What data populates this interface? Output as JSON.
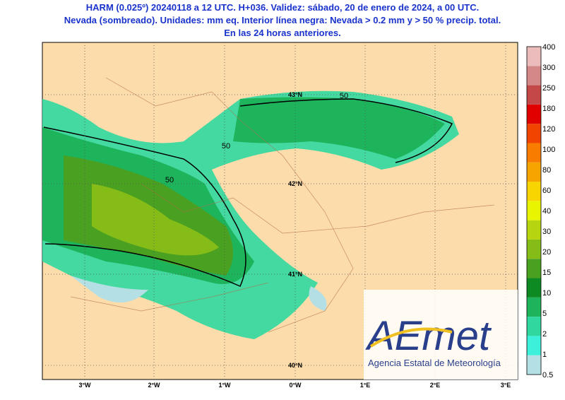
{
  "header": {
    "lines": [
      "HARM (0.025º) 20240118 a 12 UTC. H+036. Validez: sábado, 20 de enero de 2024, a 00 UTC.",
      "Nevada (sombreado). Unidades: mm eq. Interior línea negra: Nevada > 0.2 mm y > 50 % precip. total.",
      "En las 24 horas anteriores."
    ]
  },
  "map": {
    "lat_labels": [
      "43°N",
      "42°N",
      "41°N",
      "40°N"
    ],
    "lon_labels": [
      "3°W",
      "2°W",
      "1°W",
      "0°W",
      "1°E",
      "2°E",
      "3°E"
    ],
    "contour_labels": [
      "50",
      "50",
      "50"
    ]
  },
  "colorbar": {
    "labels": [
      "0.5",
      "1",
      "2",
      "5",
      "10",
      "15",
      "20",
      "30",
      "40",
      "60",
      "80",
      "100",
      "120",
      "180",
      "250",
      "300",
      "400"
    ],
    "colors": [
      "#b4dfe4",
      "#3cf0dc",
      "#30d8a0",
      "#1eb45c",
      "#0e8a22",
      "#4aa020",
      "#86bc18",
      "#b6d410",
      "#e8f400",
      "#f8d400",
      "#f8a400",
      "#f87c00",
      "#f04400",
      "#e00000",
      "#c44848",
      "#d48888",
      "#ecbcbc"
    ]
  },
  "logo": {
    "brand": "AEmet",
    "name": "Agencia Estatal de Meteorología"
  }
}
